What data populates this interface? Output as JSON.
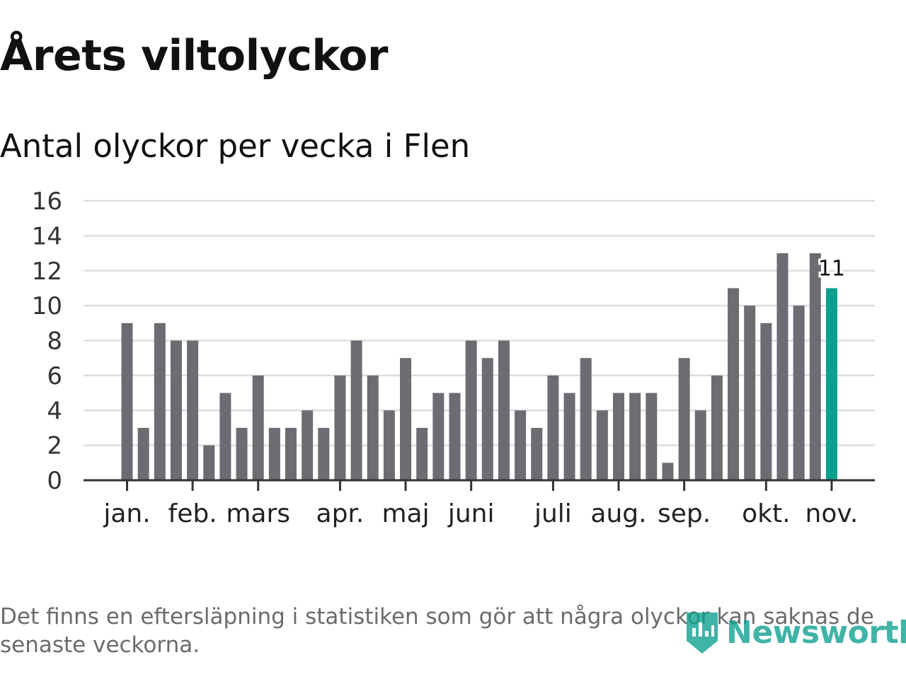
{
  "chart_data": {
    "type": "bar",
    "title": "Årets viltolyckor",
    "subtitle": "Antal olyckor per vecka i Flen",
    "values": [
      9,
      3,
      9,
      8,
      8,
      2,
      5,
      3,
      6,
      3,
      3,
      4,
      3,
      6,
      8,
      6,
      4,
      7,
      3,
      5,
      5,
      8,
      7,
      8,
      4,
      3,
      6,
      5,
      7,
      4,
      5,
      5,
      5,
      1,
      7,
      4,
      6,
      11,
      10,
      9,
      13,
      10,
      13,
      11
    ],
    "month_labels": [
      {
        "label": "jan.",
        "week": 1
      },
      {
        "label": "feb.",
        "week": 5
      },
      {
        "label": "mars",
        "week": 9
      },
      {
        "label": "apr.",
        "week": 14
      },
      {
        "label": "maj",
        "week": 18
      },
      {
        "label": "juni",
        "week": 22
      },
      {
        "label": "juli",
        "week": 27
      },
      {
        "label": "aug.",
        "week": 31
      },
      {
        "label": "sep.",
        "week": 35
      },
      {
        "label": "okt.",
        "week": 40
      },
      {
        "label": "nov.",
        "week": 44
      }
    ],
    "yticks": [
      0,
      2,
      4,
      6,
      8,
      10,
      12,
      14,
      16
    ],
    "ylim": [
      0,
      16
    ],
    "grid": true,
    "last_label": "11",
    "colors": {
      "bar": "#6d6c72",
      "highlight": "#0a9f8f",
      "grid": "#dddddd",
      "axis": "#333333"
    }
  },
  "footnote": "Det finns en eftersläpning i statistiken som gör att några olyckor kan saknas de senaste veckorna.",
  "logo": {
    "text": "Newsworthy",
    "icon": "bar-chart-pin-icon"
  }
}
